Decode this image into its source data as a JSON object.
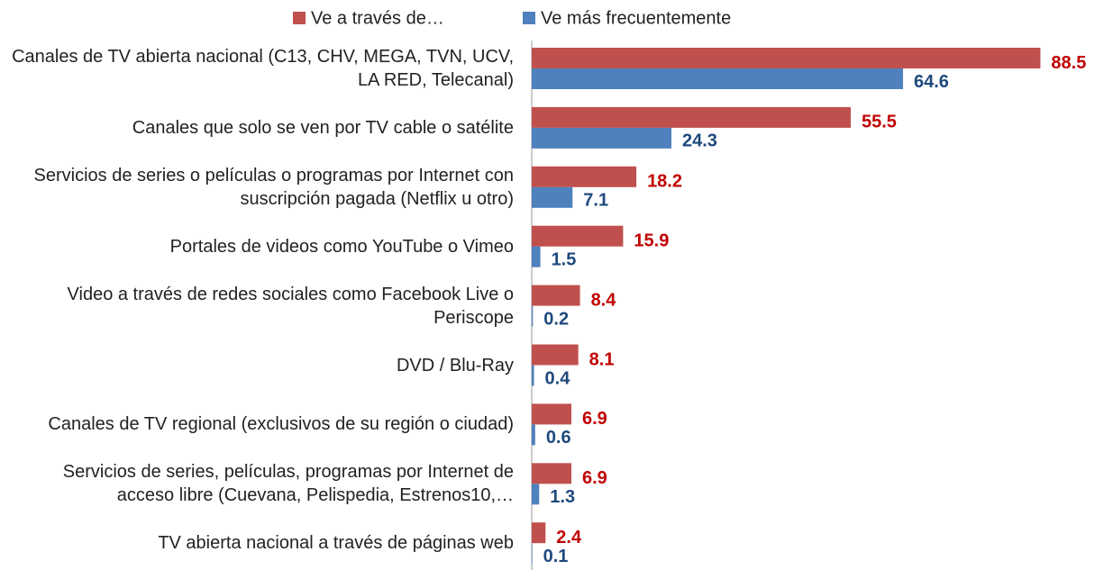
{
  "chart_data": {
    "type": "barh",
    "categories": [
      "Canales de TV abierta nacional (C13, CHV, MEGA, TVN, UCV, LA RED, Telecanal)",
      "Canales que solo se ven por TV cable o satélite",
      "Servicios de series o películas o programas por Internet con suscripción pagada (Netflix u otro)",
      "Portales de videos como YouTube o Vimeo",
      "Video a través de redes sociales como Facebook Live o Periscope",
      "DVD / Blu-Ray",
      "Canales de TV regional (exclusivos de su región o ciudad)",
      "Servicios de series, películas, programas por Internet de acceso libre (Cuevana, Pelispedia, Estrenos10,…",
      "TV abierta nacional a través de páginas web"
    ],
    "series": [
      {
        "name": "Ve a través de…",
        "color": "#c0504d",
        "label_color": "#c00000",
        "values": [
          88.5,
          55.5,
          18.2,
          15.9,
          8.4,
          8.1,
          6.9,
          6.9,
          2.4
        ]
      },
      {
        "name": "Ve más frecuentemente",
        "color": "#4f81bd",
        "label_color": "#1f497d",
        "values": [
          64.6,
          24.3,
          7.1,
          1.5,
          0.2,
          0.4,
          0.6,
          1.3,
          0.1
        ]
      }
    ],
    "xlim": [
      0,
      90
    ],
    "legend": "top"
  }
}
